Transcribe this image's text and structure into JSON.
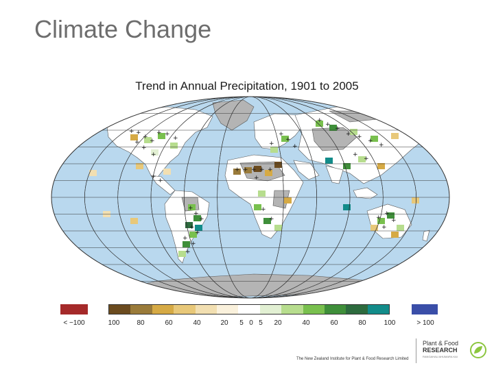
{
  "slide": {
    "title": "Climate Change"
  },
  "map": {
    "title": "Trend in Annual Precipitation, 1901 to 2005",
    "ocean_color": "#b9d8ee",
    "land_color": "#ffffff",
    "nodata_color": "#b4b4b4",
    "graticule_color": "#333333",
    "significance_marker": "+"
  },
  "legend": {
    "low_label": "< −100",
    "high_label": "> 100",
    "low_color": "#a52a2a",
    "high_color": "#3a4ea8",
    "tick_labels": [
      "100",
      "80",
      "60",
      "40",
      "20",
      "5",
      "0",
      "5",
      "20",
      "40",
      "60",
      "80",
      "100"
    ],
    "colors": [
      "#6b4b1f",
      "#9a7b3a",
      "#d6aa45",
      "#e8c879",
      "#f2dfb1",
      "#faf1dc",
      "#ffffff",
      "#e2f0d3",
      "#b7dd8e",
      "#79c04e",
      "#3f8f3a",
      "#2d6b3e",
      "#128c8a"
    ]
  },
  "footer": {
    "text": "The New Zealand Institute for Plant & Food Research Limited"
  },
  "logo": {
    "line1": "Plant & Food",
    "line2": "RESEARCH",
    "line3": "RANGAHAU AHUMARA KAI",
    "accent_color": "#8cc63f"
  }
}
